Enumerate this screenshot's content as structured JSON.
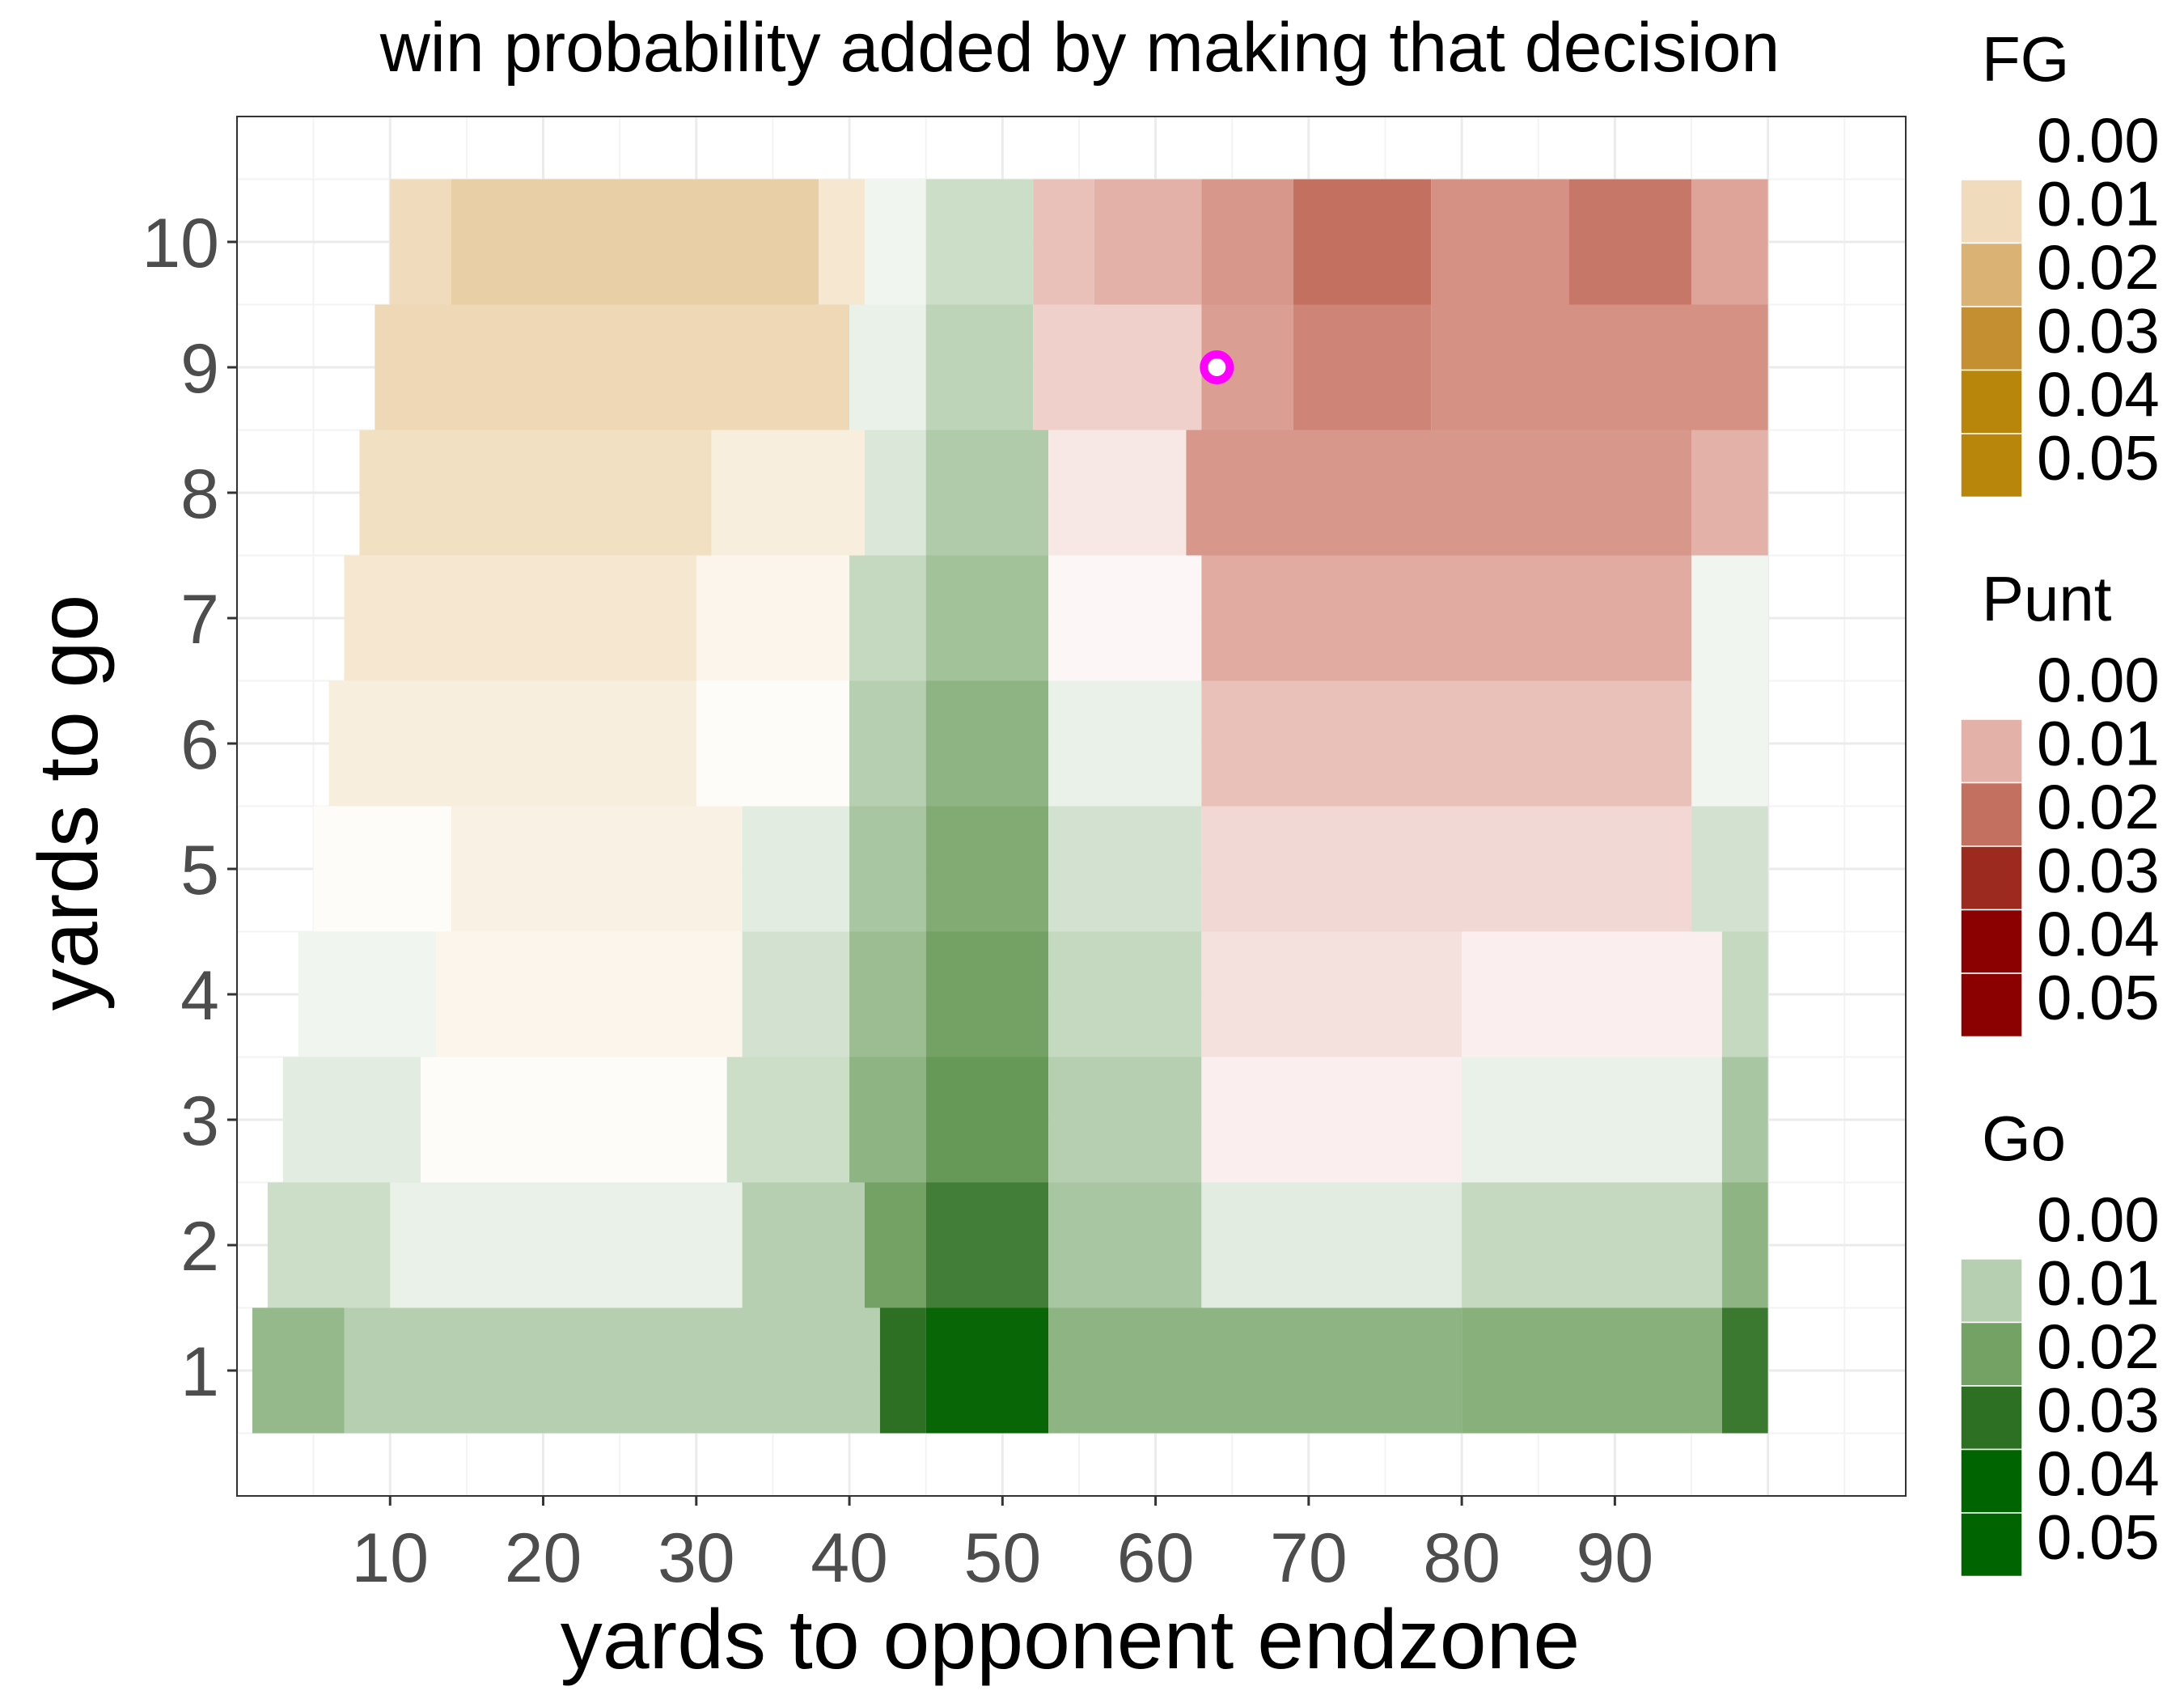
{
  "chart_data": {
    "type": "heatmap",
    "title": "win probability added by making that decision",
    "xlabel": "yards to opponent endzone",
    "ylabel": "yards to go",
    "xlim": [
      0,
      109
    ],
    "ylim": [
      0,
      11
    ],
    "x_ticks": [
      10,
      20,
      30,
      40,
      50,
      60,
      70,
      80,
      90
    ],
    "y_ticks": [
      1,
      2,
      3,
      4,
      5,
      6,
      7,
      8,
      9,
      10
    ],
    "grid": true,
    "legend_placement": "right",
    "decision_order": [
      "FG",
      "Punt",
      "Go"
    ],
    "legends": [
      {
        "name": "FG",
        "colors": [
          "#F0DCBC",
          "#D9B274",
          "#C38F30",
          "#B8860B",
          "#B8860B"
        ],
        "labels": [
          "0.00",
          "0.01",
          "0.02",
          "0.03",
          "0.04",
          "0.05"
        ]
      },
      {
        "name": "Punt",
        "colors": [
          "#E4B1A8",
          "#C47060",
          "#9C2A1E",
          "#8B0000",
          "#8B0000"
        ],
        "labels": [
          "0.00",
          "0.01",
          "0.02",
          "0.03",
          "0.04",
          "0.05"
        ]
      },
      {
        "name": "Go",
        "colors": [
          "#B6CFB1",
          "#74A264",
          "#2D6F23",
          "#006400",
          "#006400"
        ],
        "labels": [
          "0.00",
          "0.01",
          "0.02",
          "0.03",
          "0.04",
          "0.05"
        ]
      }
    ],
    "rows": [
      {
        "ytg": 10,
        "segments": [
          {
            "x0": 10,
            "x1": 14,
            "decision": "FG",
            "wpa": 0.01
          },
          {
            "x0": 14,
            "x1": 38,
            "decision": "FG",
            "wpa": 0.013
          },
          {
            "x0": 38,
            "x1": 41,
            "decision": "FG",
            "wpa": 0.007
          },
          {
            "x0": 41,
            "x1": 45,
            "decision": "Go",
            "wpa": 0.002
          },
          {
            "x0": 45,
            "x1": 52,
            "decision": "Go",
            "wpa": 0.007
          },
          {
            "x0": 52,
            "x1": 56,
            "decision": "Punt",
            "wpa": 0.008
          },
          {
            "x0": 56,
            "x1": 63,
            "decision": "Punt",
            "wpa": 0.01
          },
          {
            "x0": 63,
            "x1": 69,
            "decision": "Punt",
            "wpa": 0.014
          },
          {
            "x0": 69,
            "x1": 78,
            "decision": "Punt",
            "wpa": 0.02
          },
          {
            "x0": 78,
            "x1": 87,
            "decision": "Punt",
            "wpa": 0.015
          },
          {
            "x0": 87,
            "x1": 95,
            "decision": "Punt",
            "wpa": 0.019
          },
          {
            "x0": 95,
            "x1": 100,
            "decision": "Punt",
            "wpa": 0.012
          }
        ]
      },
      {
        "ytg": 9,
        "segments": [
          {
            "x0": 9,
            "x1": 40,
            "decision": "FG",
            "wpa": 0.011
          },
          {
            "x0": 40,
            "x1": 45,
            "decision": "Go",
            "wpa": 0.003
          },
          {
            "x0": 45,
            "x1": 52,
            "decision": "Go",
            "wpa": 0.009
          },
          {
            "x0": 52,
            "x1": 63,
            "decision": "Punt",
            "wpa": 0.006
          },
          {
            "x0": 63,
            "x1": 69,
            "decision": "Punt",
            "wpa": 0.013
          },
          {
            "x0": 69,
            "x1": 78,
            "decision": "Punt",
            "wpa": 0.017
          },
          {
            "x0": 78,
            "x1": 100,
            "decision": "Punt",
            "wpa": 0.015
          }
        ]
      },
      {
        "ytg": 8,
        "segments": [
          {
            "x0": 8,
            "x1": 31,
            "decision": "FG",
            "wpa": 0.009
          },
          {
            "x0": 31,
            "x1": 41,
            "decision": "FG",
            "wpa": 0.005
          },
          {
            "x0": 41,
            "x1": 45,
            "decision": "Go",
            "wpa": 0.005
          },
          {
            "x0": 45,
            "x1": 53,
            "decision": "Go",
            "wpa": 0.011
          },
          {
            "x0": 53,
            "x1": 62,
            "decision": "Punt",
            "wpa": 0.003
          },
          {
            "x0": 62,
            "x1": 95,
            "decision": "Punt",
            "wpa": 0.014
          },
          {
            "x0": 95,
            "x1": 100,
            "decision": "Punt",
            "wpa": 0.01
          }
        ]
      },
      {
        "ytg": 7,
        "segments": [
          {
            "x0": 7,
            "x1": 30,
            "decision": "FG",
            "wpa": 0.007
          },
          {
            "x0": 30,
            "x1": 40,
            "decision": "FG",
            "wpa": 0.003
          },
          {
            "x0": 40,
            "x1": 45,
            "decision": "Go",
            "wpa": 0.008
          },
          {
            "x0": 45,
            "x1": 53,
            "decision": "Go",
            "wpa": 0.013
          },
          {
            "x0": 53,
            "x1": 63,
            "decision": "Punt",
            "wpa": 0.001
          },
          {
            "x0": 63,
            "x1": 95,
            "decision": "Punt",
            "wpa": 0.011
          },
          {
            "x0": 95,
            "x1": 100,
            "decision": "Go",
            "wpa": 0.002
          }
        ]
      },
      {
        "ytg": 6,
        "segments": [
          {
            "x0": 6,
            "x1": 30,
            "decision": "FG",
            "wpa": 0.005
          },
          {
            "x0": 30,
            "x1": 40,
            "decision": "FG",
            "wpa": 0.001
          },
          {
            "x0": 40,
            "x1": 45,
            "decision": "Go",
            "wpa": 0.01
          },
          {
            "x0": 45,
            "x1": 53,
            "decision": "Go",
            "wpa": 0.016
          },
          {
            "x0": 53,
            "x1": 63,
            "decision": "Go",
            "wpa": 0.003
          },
          {
            "x0": 63,
            "x1": 95,
            "decision": "Punt",
            "wpa": 0.008
          },
          {
            "x0": 95,
            "x1": 100,
            "decision": "Go",
            "wpa": 0.002
          }
        ]
      },
      {
        "ytg": 5,
        "segments": [
          {
            "x0": 5,
            "x1": 14,
            "decision": "FG",
            "wpa": 0.001
          },
          {
            "x0": 14,
            "x1": 33,
            "decision": "FG",
            "wpa": 0.004
          },
          {
            "x0": 33,
            "x1": 40,
            "decision": "Go",
            "wpa": 0.004
          },
          {
            "x0": 40,
            "x1": 45,
            "decision": "Go",
            "wpa": 0.012
          },
          {
            "x0": 45,
            "x1": 53,
            "decision": "Go",
            "wpa": 0.018
          },
          {
            "x0": 53,
            "x1": 63,
            "decision": "Go",
            "wpa": 0.006
          },
          {
            "x0": 63,
            "x1": 95,
            "decision": "Punt",
            "wpa": 0.005
          },
          {
            "x0": 95,
            "x1": 100,
            "decision": "Go",
            "wpa": 0.006
          }
        ]
      },
      {
        "ytg": 4,
        "segments": [
          {
            "x0": 4,
            "x1": 13,
            "decision": "Go",
            "wpa": 0.002
          },
          {
            "x0": 13,
            "x1": 33,
            "decision": "FG",
            "wpa": 0.003
          },
          {
            "x0": 33,
            "x1": 40,
            "decision": "Go",
            "wpa": 0.006
          },
          {
            "x0": 40,
            "x1": 45,
            "decision": "Go",
            "wpa": 0.014
          },
          {
            "x0": 45,
            "x1": 53,
            "decision": "Go",
            "wpa": 0.02
          },
          {
            "x0": 53,
            "x1": 63,
            "decision": "Go",
            "wpa": 0.008
          },
          {
            "x0": 63,
            "x1": 80,
            "decision": "Punt",
            "wpa": 0.004
          },
          {
            "x0": 80,
            "x1": 97,
            "decision": "Punt",
            "wpa": 0.002
          },
          {
            "x0": 97,
            "x1": 100,
            "decision": "Go",
            "wpa": 0.008
          }
        ]
      },
      {
        "ytg": 3,
        "segments": [
          {
            "x0": 3,
            "x1": 12,
            "decision": "Go",
            "wpa": 0.004
          },
          {
            "x0": 12,
            "x1": 32,
            "decision": "FG",
            "wpa": 0.001
          },
          {
            "x0": 32,
            "x1": 40,
            "decision": "Go",
            "wpa": 0.007
          },
          {
            "x0": 40,
            "x1": 45,
            "decision": "Go",
            "wpa": 0.016
          },
          {
            "x0": 45,
            "x1": 53,
            "decision": "Go",
            "wpa": 0.022
          },
          {
            "x0": 53,
            "x1": 63,
            "decision": "Go",
            "wpa": 0.01
          },
          {
            "x0": 63,
            "x1": 80,
            "decision": "Punt",
            "wpa": 0.002
          },
          {
            "x0": 80,
            "x1": 97,
            "decision": "Go",
            "wpa": 0.003
          },
          {
            "x0": 97,
            "x1": 100,
            "decision": "Go",
            "wpa": 0.012
          }
        ]
      },
      {
        "ytg": 2,
        "segments": [
          {
            "x0": 2,
            "x1": 10,
            "decision": "Go",
            "wpa": 0.007
          },
          {
            "x0": 10,
            "x1": 33,
            "decision": "Go",
            "wpa": 0.003
          },
          {
            "x0": 33,
            "x1": 41,
            "decision": "Go",
            "wpa": 0.01
          },
          {
            "x0": 41,
            "x1": 45,
            "decision": "Go",
            "wpa": 0.02
          },
          {
            "x0": 45,
            "x1": 53,
            "decision": "Go",
            "wpa": 0.027
          },
          {
            "x0": 53,
            "x1": 63,
            "decision": "Go",
            "wpa": 0.012
          },
          {
            "x0": 63,
            "x1": 80,
            "decision": "Go",
            "wpa": 0.004
          },
          {
            "x0": 80,
            "x1": 97,
            "decision": "Go",
            "wpa": 0.008
          },
          {
            "x0": 97,
            "x1": 100,
            "decision": "Go",
            "wpa": 0.016
          }
        ]
      },
      {
        "ytg": 1,
        "segments": [
          {
            "x0": 1,
            "x1": 7,
            "decision": "Go",
            "wpa": 0.015
          },
          {
            "x0": 7,
            "x1": 42,
            "decision": "Go",
            "wpa": 0.01
          },
          {
            "x0": 42,
            "x1": 45,
            "decision": "Go",
            "wpa": 0.03
          },
          {
            "x0": 45,
            "x1": 53,
            "decision": "Go",
            "wpa": 0.038
          },
          {
            "x0": 53,
            "x1": 80,
            "decision": "Go",
            "wpa": 0.016
          },
          {
            "x0": 80,
            "x1": 97,
            "decision": "Go",
            "wpa": 0.017
          },
          {
            "x0": 97,
            "x1": 100,
            "decision": "Go",
            "wpa": 0.028
          }
        ]
      }
    ],
    "highlight_point": {
      "x": 64,
      "y": 9,
      "color": "#FF00FF"
    }
  }
}
